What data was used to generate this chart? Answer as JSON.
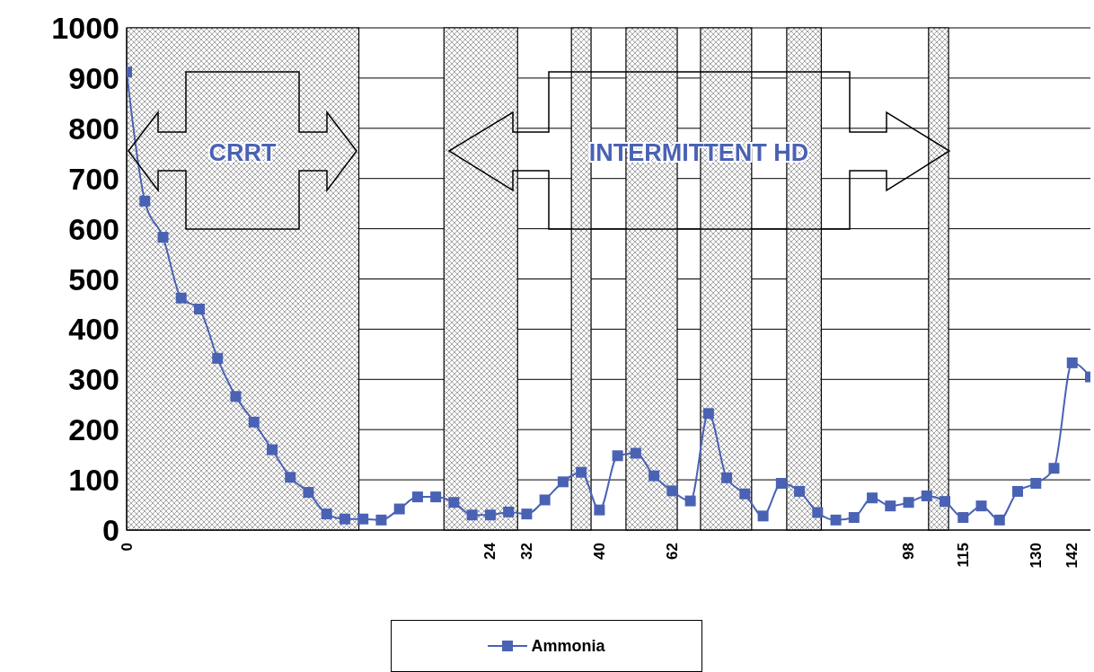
{
  "chart_data": {
    "type": "line",
    "categories": [
      "0",
      null,
      null,
      null,
      null,
      null,
      null,
      null,
      null,
      null,
      null,
      null,
      null,
      null,
      null,
      null,
      null,
      null,
      null,
      null,
      "24",
      null,
      "32",
      null,
      null,
      null,
      "40",
      null,
      null,
      null,
      "62",
      null,
      null,
      null,
      null,
      null,
      null,
      null,
      null,
      null,
      null,
      null,
      null,
      "98",
      null,
      null,
      "115",
      null,
      null,
      null,
      "130",
      null,
      "142",
      null
    ],
    "series": [
      {
        "name": "Ammonia",
        "color": "#4a62b4",
        "values": [
          912,
          655,
          583,
          462,
          440,
          342,
          266,
          215,
          160,
          105,
          75,
          32,
          22,
          22,
          20,
          42,
          66,
          66,
          55,
          30,
          30,
          36,
          32,
          60,
          96,
          115,
          40,
          148,
          153,
          108,
          78,
          58,
          232,
          104,
          72,
          28,
          93,
          77,
          35,
          20,
          25,
          64,
          48,
          55,
          68,
          57,
          25,
          48,
          20,
          77,
          93,
          123,
          333,
          305
        ]
      }
    ],
    "ylim": [
      0,
      1000
    ],
    "yticks": [
      0,
      100,
      200,
      300,
      400,
      500,
      600,
      700,
      800,
      900,
      1000
    ],
    "grid": "y",
    "legend": "bottom",
    "marker": "square",
    "line_style": "solid",
    "annotations": [
      "CRRT",
      "INTERMITTENT HD"
    ]
  }
}
